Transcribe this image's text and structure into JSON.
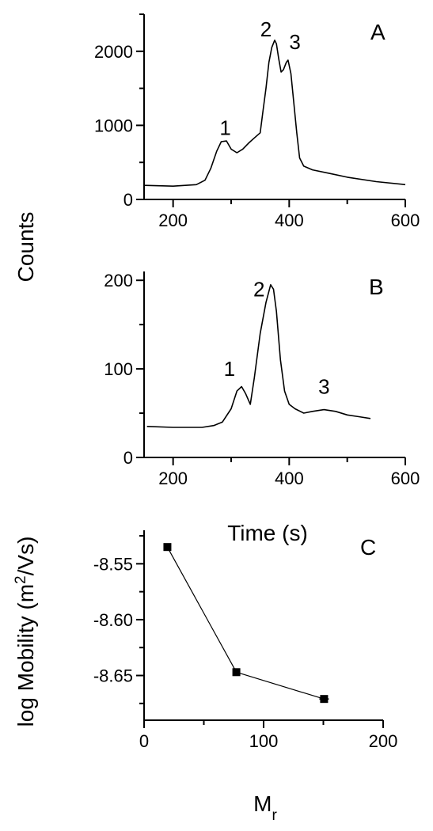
{
  "chart_data": [
    {
      "panel": "A",
      "type": "line",
      "xlim": [
        150,
        600
      ],
      "ylim": [
        0,
        2500
      ],
      "xticks": [
        200,
        400,
        600
      ],
      "yticks": [
        0,
        1000,
        2000
      ],
      "xticklabels": [
        "200",
        "400",
        "600"
      ],
      "yticklabels": [
        "0",
        "1000",
        "2000"
      ],
      "series": [
        {
          "x": [
            150,
            200,
            240,
            255,
            265,
            275,
            283,
            292,
            300,
            310,
            320,
            330,
            340,
            350,
            355,
            360,
            365,
            370,
            375,
            378,
            382,
            386,
            390,
            395,
            398,
            403,
            408,
            413,
            418,
            425,
            440,
            470,
            500,
            550,
            600
          ],
          "y": [
            190,
            180,
            200,
            260,
            420,
            650,
            780,
            790,
            680,
            630,
            680,
            760,
            830,
            900,
            1200,
            1500,
            1850,
            2050,
            2150,
            2100,
            1900,
            1720,
            1750,
            1850,
            1880,
            1700,
            1300,
            900,
            560,
            450,
            400,
            350,
            300,
            240,
            200
          ]
        }
      ],
      "annotations": [
        {
          "text": "1",
          "x": 290,
          "y": 870
        },
        {
          "text": "2",
          "x": 360,
          "y": 2200
        },
        {
          "text": "3",
          "x": 410,
          "y": 2030
        }
      ]
    },
    {
      "panel": "B",
      "type": "line",
      "xlim": [
        150,
        600
      ],
      "ylim": [
        0,
        210
      ],
      "xticks": [
        200,
        400,
        600
      ],
      "yticks": [
        0,
        100,
        200
      ],
      "xticklabels": [
        "200",
        "400",
        "600"
      ],
      "yticklabels": [
        "0",
        "100",
        "200"
      ],
      "series": [
        {
          "x": [
            155,
            200,
            250,
            270,
            285,
            300,
            310,
            318,
            325,
            333,
            340,
            350,
            360,
            368,
            373,
            378,
            385,
            392,
            400,
            410,
            425,
            440,
            460,
            480,
            500,
            520,
            540
          ],
          "y": [
            35,
            34,
            34,
            36,
            40,
            55,
            75,
            80,
            72,
            60,
            90,
            140,
            175,
            195,
            190,
            165,
            110,
            75,
            60,
            55,
            50,
            52,
            54,
            52,
            48,
            46,
            44
          ]
        }
      ],
      "annotations": [
        {
          "text": "1",
          "x": 297,
          "y": 92
        },
        {
          "text": "2",
          "x": 348,
          "y": 182
        },
        {
          "text": "3",
          "x": 460,
          "y": 72
        }
      ]
    },
    {
      "panel": "C",
      "type": "line",
      "xlim": [
        0,
        200
      ],
      "ylim": [
        -8.69,
        -8.52
      ],
      "xticks": [
        0,
        100,
        200
      ],
      "yticks": [
        -8.55,
        -8.6,
        -8.65
      ],
      "xticklabels": [
        "0",
        "100",
        "200"
      ],
      "yticklabels": [
        "-8.55",
        "-8.60",
        "-8.65"
      ],
      "xlabel": "M",
      "xlabel_sub": "r",
      "ylabel": "log Mobility (m",
      "ylabel_sup": "2",
      "ylabel_tail": "/Vs)",
      "series": [
        {
          "x": [
            19.5,
            77.2,
            150.6
          ],
          "y": [
            -8.535,
            -8.647,
            -8.671
          ],
          "xerr": [
            3,
            3,
            4
          ],
          "marker": "square"
        }
      ]
    }
  ],
  "labels": {
    "counts_label": "Counts",
    "time_label": "Time (s)",
    "panel_a": "A",
    "panel_b": "B",
    "panel_c": "C"
  }
}
